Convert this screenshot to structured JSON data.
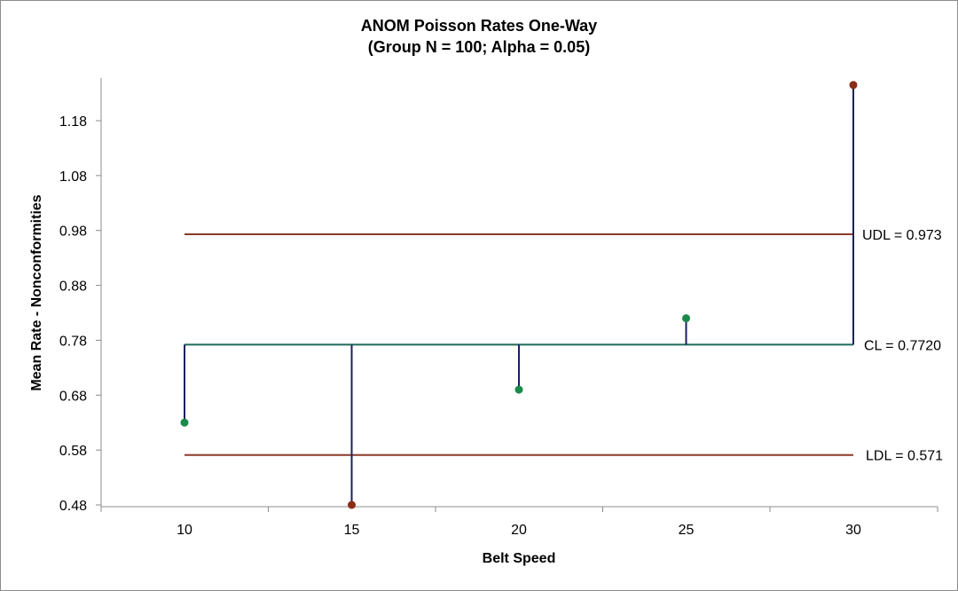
{
  "chart_data": {
    "type": "scatter",
    "title": "ANOM Poisson Rates One-Way",
    "subtitle": "(Group N = 100; Alpha = 0.05)",
    "xlabel": "Belt Speed",
    "ylabel": "Mean Rate - Nonconformities",
    "x": [
      10,
      15,
      20,
      25,
      30
    ],
    "x_tick_labels": [
      "10",
      "15",
      "20",
      "25",
      "30"
    ],
    "y_ticks": [
      0.48,
      0.58,
      0.68,
      0.78,
      0.88,
      0.98,
      1.08,
      1.18
    ],
    "y_tick_labels": [
      "0.48",
      "0.58",
      "0.68",
      "0.78",
      "0.88",
      "0.98",
      "1.08",
      "1.18"
    ],
    "ylim": [
      0.48,
      1.25
    ],
    "series": [
      {
        "values": [
          0.63,
          0.48,
          0.69,
          0.82,
          1.245
        ]
      }
    ],
    "point_status": [
      "in",
      "out",
      "in",
      "in",
      "out"
    ],
    "center_line": {
      "value": 0.772,
      "label": "CL = 0.7720"
    },
    "upper_limit": {
      "value": 0.973,
      "label": "UDL = 0.973"
    },
    "lower_limit": {
      "value": 0.571,
      "label": "LDL = 0.571"
    },
    "colors": {
      "in_control": "#1a8a4a",
      "out_of_control": "#8b2d18",
      "center_line": "#1f6b5a",
      "limit_line": "#8b3a2a",
      "stem": "#1b1f5e",
      "axis": "#8c8c8c"
    }
  }
}
